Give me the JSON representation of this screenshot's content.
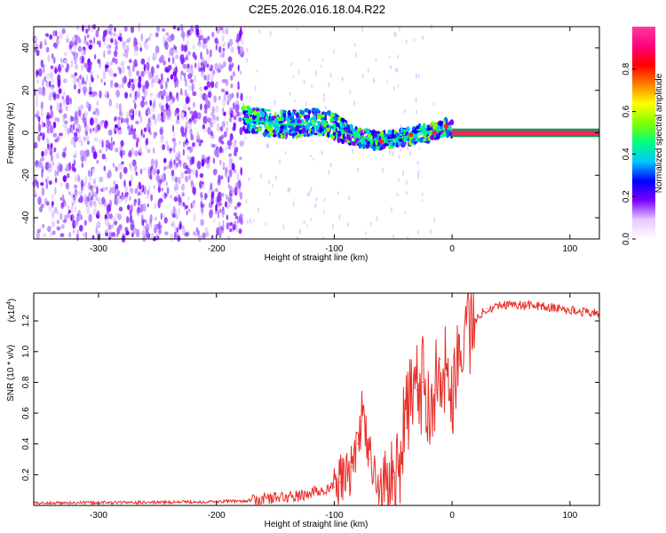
{
  "title": "C2E5.2026.016.18.04.R22",
  "chart_data": [
    {
      "type": "heatmap",
      "name": "spectrogram",
      "xlabel": "Height of straight line (km)",
      "ylabel": "Frequency (Hz)",
      "xlim": [
        -355,
        125
      ],
      "ylim": [
        -50,
        50
      ],
      "xticks": [
        -300,
        -200,
        -100,
        0,
        100
      ],
      "yticks": [
        -40,
        -20,
        0,
        20,
        40
      ],
      "noise_region_x": [
        -355,
        -178
      ],
      "ridge": {
        "x": [
          -178,
          -170,
          -160,
          -150,
          -140,
          -130,
          -120,
          -110,
          -100,
          -90,
          -80,
          -70,
          -60,
          -50,
          -40,
          -30,
          -20,
          -10,
          -5,
          0,
          125
        ],
        "freq": [
          7,
          6,
          5,
          4,
          4,
          4,
          5,
          5,
          3,
          0,
          -2,
          -3,
          -4,
          -3,
          -2,
          -1,
          0,
          1,
          3,
          1,
          0
        ]
      },
      "colorbar": {
        "label": "Normalized spectral amplitude",
        "ticks": [
          0.0,
          0.2,
          0.4,
          0.6,
          0.8
        ],
        "tick_labels": [
          "0.0",
          "0.2",
          "0.4",
          "0.6",
          "0.8"
        ],
        "range": [
          0,
          1
        ],
        "stops": [
          "#ffffff",
          "#e6c8ff",
          "#7a00ff",
          "#0000ff",
          "#00c8ff",
          "#00ff80",
          "#80ff00",
          "#ffff00",
          "#ff8000",
          "#ff0000",
          "#ff0080",
          "#ff3c9b"
        ]
      }
    },
    {
      "type": "line",
      "name": "snr",
      "xlabel": "Height of straight line (km)",
      "ylabel": "SNR (10 * v/v)",
      "multiplier_label": "(x10",
      "multiplier_exp": "4",
      "multiplier_close": ")",
      "xlim": [
        -355,
        125
      ],
      "ylim": [
        0,
        1.38
      ],
      "xticks": [
        -300,
        -200,
        -100,
        0,
        100
      ],
      "yticks": [
        0.2,
        0.4,
        0.6,
        0.8,
        1.0,
        1.2
      ],
      "ytick_labels": [
        "0.2",
        "0.4",
        "0.6",
        "0.8",
        "1.0",
        "1.2"
      ],
      "color": "#e8302a",
      "series": [
        {
          "name": "SNR",
          "x": [
            -355,
            -300,
            -250,
            -200,
            -175,
            -165,
            -160,
            -150,
            -140,
            -130,
            -120,
            -110,
            -100,
            -95,
            -90,
            -85,
            -80,
            -77,
            -75,
            -73,
            -70,
            -65,
            -60,
            -55,
            -50,
            -45,
            -40,
            -35,
            -32,
            -30,
            -28,
            -25,
            -20,
            -15,
            -10,
            -5,
            -2,
            0,
            2,
            5,
            10,
            12,
            15,
            20,
            25,
            30,
            40,
            50,
            60,
            70,
            80,
            90,
            100,
            110,
            125
          ],
          "y": [
            0.015,
            0.018,
            0.02,
            0.025,
            0.03,
            0.035,
            0.045,
            0.05,
            0.055,
            0.06,
            0.08,
            0.1,
            0.12,
            0.15,
            0.2,
            0.25,
            0.4,
            0.55,
            0.65,
            0.5,
            0.3,
            0.15,
            0.08,
            0.1,
            0.18,
            0.3,
            0.5,
            0.7,
            0.9,
            0.75,
            0.65,
            0.8,
            0.7,
            0.75,
            0.95,
            0.85,
            0.75,
            0.7,
            0.9,
            0.95,
            1.1,
            1.2,
            1.15,
            1.2,
            1.25,
            1.28,
            1.3,
            1.31,
            1.3,
            1.3,
            1.29,
            1.28,
            1.27,
            1.26,
            1.25
          ]
        }
      ]
    }
  ]
}
